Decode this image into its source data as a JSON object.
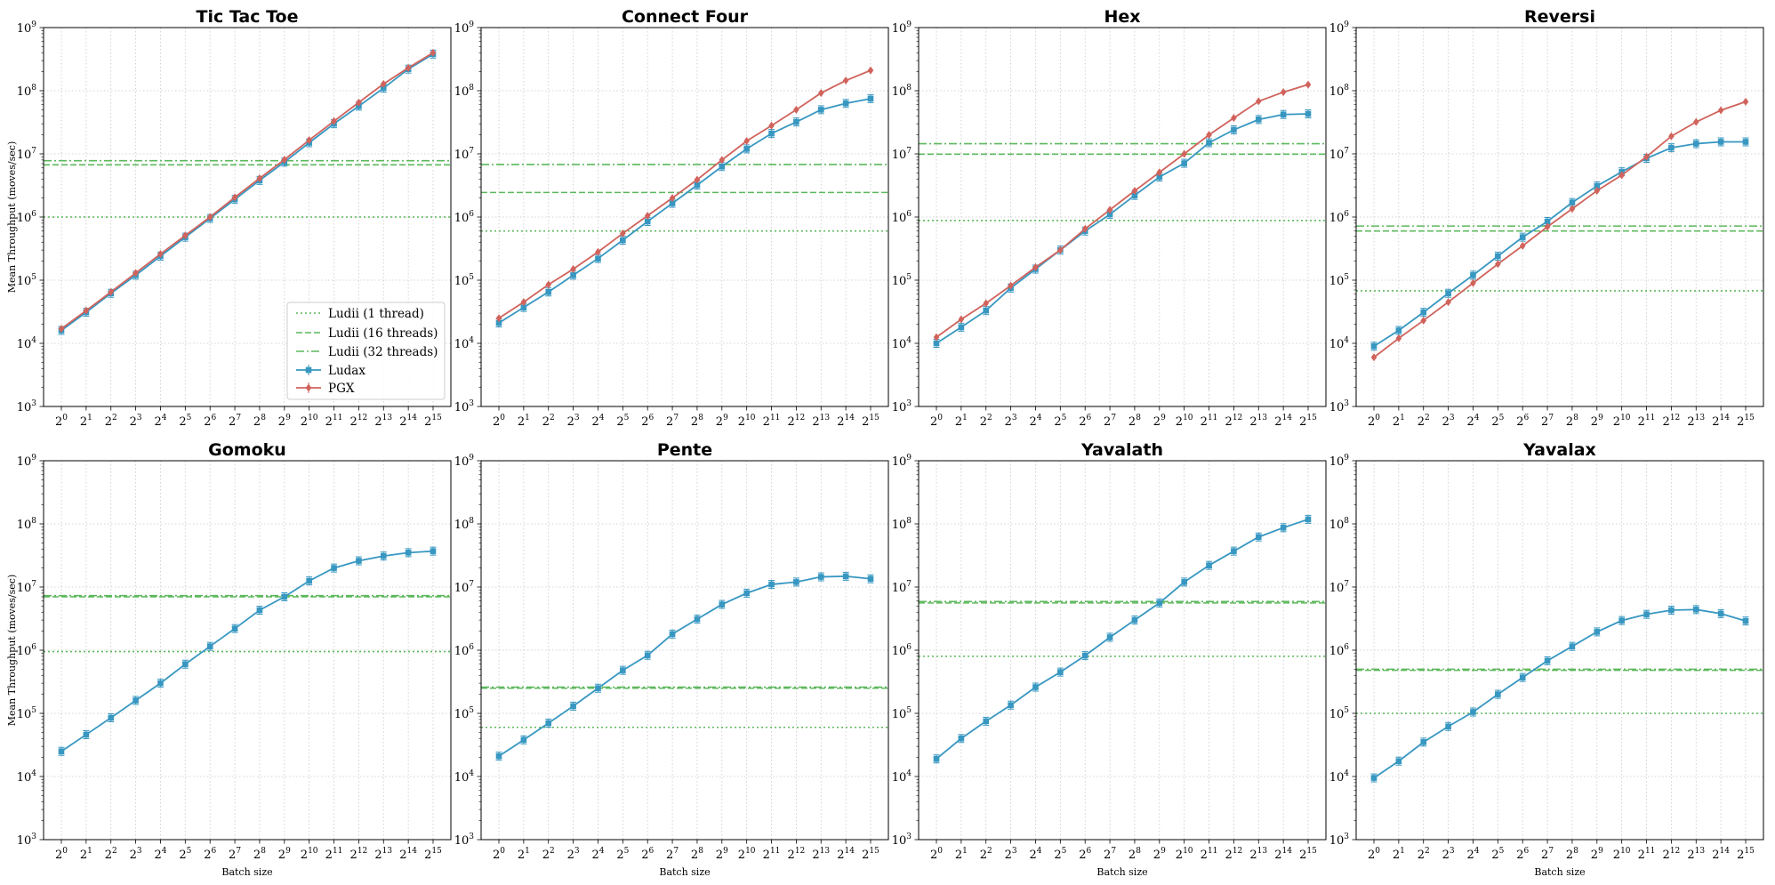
{
  "chart_data": {
    "type": "line",
    "layout": "2x4 grid",
    "x_tick_base": "2",
    "x_tick_exponents": [
      "0",
      "1",
      "2",
      "3",
      "4",
      "5",
      "6",
      "7",
      "8",
      "9",
      "10",
      "11",
      "12",
      "13",
      "14",
      "15"
    ],
    "y_scale": "log",
    "ylim": [
      1000,
      1000000000
    ],
    "y_tick_base": "10",
    "y_tick_exponents": [
      "3",
      "4",
      "5",
      "6",
      "7",
      "8",
      "9"
    ],
    "grid": true,
    "ylabel": "Mean Throughput (moves/sec)",
    "xlabel": "Batch size",
    "legend": {
      "placement": "lower-right of first panel",
      "entries": [
        {
          "label": "Ludii (1 thread)",
          "style": "dotted"
        },
        {
          "label": "Ludii (16 threads)",
          "style": "dashed"
        },
        {
          "label": "Ludii (32 threads)",
          "style": "dashdot"
        },
        {
          "label": "Ludax",
          "style": "line-square"
        },
        {
          "label": "PGX",
          "style": "line-diamond"
        }
      ]
    },
    "colors": {
      "ludax": "#3797c1",
      "pgx": "#d0635c",
      "ludii": "#5cb85c",
      "grid": "#c8c8c8"
    },
    "x": [
      1,
      2,
      4,
      8,
      16,
      32,
      64,
      128,
      256,
      512,
      1024,
      2048,
      4096,
      8192,
      16384,
      32768
    ],
    "panels": [
      {
        "title": "Tic Tac Toe",
        "ludii": {
          "t1": 1000000,
          "t16": 6700000,
          "t32": 7800000
        },
        "series": [
          {
            "name": "Ludax",
            "values": [
              16000,
              31000,
              62000,
              120000,
              240000,
              480000,
              950000,
              1900000,
              3800000,
              7400000,
              15000000,
              30000000,
              57000000,
              110000000,
              220000000,
              380000000
            ]
          },
          {
            "name": "PGX",
            "values": [
              17000,
              33000,
              65000,
              130000,
              260000,
              510000,
              1000000,
              2050000,
              4100000,
              8100000,
              16500000,
              33000000,
              65000000,
              128000000,
              230000000,
              400000000
            ]
          }
        ]
      },
      {
        "title": "Connect Four",
        "ludii": {
          "t1": 600000,
          "t16": 2450000,
          "t32": 6800000
        },
        "series": [
          {
            "name": "Ludax",
            "values": [
              21000,
              37000,
              65000,
              120000,
              220000,
              430000,
              850000,
              1650000,
              3200000,
              6300000,
              12000000,
              21000000,
              32000000,
              50000000,
              63000000,
              75000000
            ]
          },
          {
            "name": "PGX",
            "values": [
              25000,
              45000,
              85000,
              150000,
              280000,
              550000,
              1050000,
              2000000,
              3900000,
              8000000,
              16000000,
              28000000,
              50000000,
              92000000,
              145000000,
              210000000
            ]
          }
        ]
      },
      {
        "title": "Hex",
        "ludii": {
          "t1": 880000,
          "t16": 9900000,
          "t32": 14500000
        },
        "series": [
          {
            "name": "Ludax",
            "values": [
              10000,
              18000,
              33000,
              75000,
              150000,
              300000,
              600000,
              1100000,
              2200000,
              4300000,
              7100000,
              15000000,
              24000000,
              35000000,
              42000000,
              43000000
            ]
          },
          {
            "name": "PGX",
            "values": [
              12500,
              24000,
              43000,
              82000,
              160000,
              300000,
              650000,
              1300000,
              2600000,
              5100000,
              10000000,
              20000000,
              37000000,
              68000000,
              95000000,
              125000000
            ]
          }
        ]
      },
      {
        "title": "Reversi",
        "ludii": {
          "t1": 68000,
          "t16": 600000,
          "t32": 720000
        },
        "series": [
          {
            "name": "Ludax",
            "values": [
              9000,
              16000,
              31000,
              62000,
              120000,
              240000,
              480000,
              850000,
              1700000,
              3100000,
              5200000,
              8500000,
              12500000,
              14500000,
              15500000,
              15500000
            ]
          },
          {
            "name": "PGX",
            "values": [
              6000,
              12000,
              23000,
              45000,
              90000,
              180000,
              350000,
              700000,
              1350000,
              2600000,
              4600000,
              9000000,
              19000000,
              32000000,
              49000000,
              67000000
            ]
          }
        ]
      },
      {
        "title": "Gomoku",
        "ludii": {
          "t1": 950000,
          "t16": 7000000,
          "t32": 7300000
        },
        "series": [
          {
            "name": "Ludax",
            "values": [
              25000,
              46000,
              85000,
              160000,
              300000,
              600000,
              1150000,
              2200000,
              4300000,
              7000000,
              12500000,
              20000000,
              26000000,
              31000000,
              35000000,
              37000000
            ]
          }
        ]
      },
      {
        "title": "Pente",
        "ludii": {
          "t1": 60000,
          "t16": 250000,
          "t32": 260000
        },
        "series": [
          {
            "name": "Ludax",
            "values": [
              21000,
              38000,
              70000,
              130000,
              250000,
              480000,
              830000,
              1800000,
              3100000,
              5300000,
              8000000,
              11000000,
              12000000,
              14500000,
              14800000,
              13500000
            ]
          }
        ]
      },
      {
        "title": "Yavalath",
        "ludii": {
          "t1": 800000,
          "t16": 5600000,
          "t32": 5900000
        },
        "series": [
          {
            "name": "Ludax",
            "values": [
              19000,
              40000,
              75000,
              135000,
              260000,
              450000,
              820000,
              1600000,
              3000000,
              5600000,
              12000000,
              22000000,
              37000000,
              62000000,
              87000000,
              118000000
            ]
          }
        ]
      },
      {
        "title": "Yavalax",
        "ludii": {
          "t1": 100000,
          "t16": 480000,
          "t32": 500000
        },
        "series": [
          {
            "name": "Ludax",
            "values": [
              9500,
              17500,
              35000,
              62000,
              105000,
              200000,
              370000,
              680000,
              1150000,
              1950000,
              2950000,
              3700000,
              4300000,
              4400000,
              3800000,
              2900000
            ]
          }
        ]
      }
    ]
  }
}
